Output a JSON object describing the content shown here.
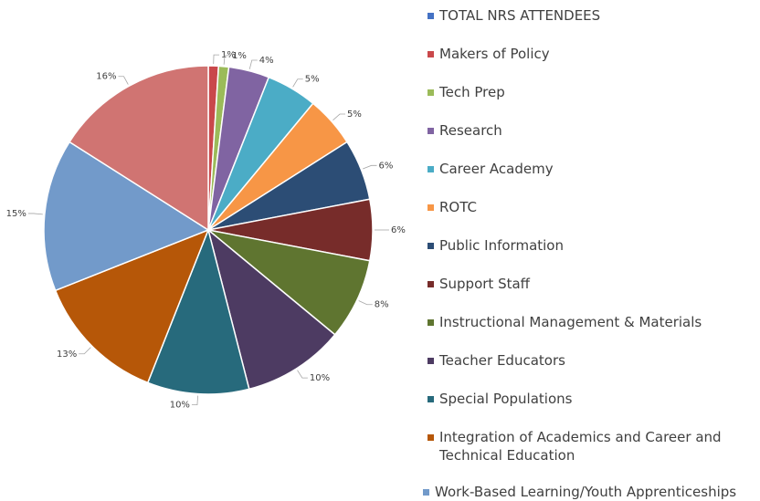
{
  "chart_data": {
    "type": "pie",
    "categories": [
      "TOTAL NRS ATTENDEES",
      "Makers of Policy",
      "Tech Prep",
      "Research",
      "Career Academy",
      "ROTC",
      "Public Information",
      "Support Staff",
      "Instructional Management & Materials",
      "Teacher Educators",
      "Special Populations",
      "Integration of Academics and Career and Technical Education",
      "Work-Based Learning/Youth Apprenticeships",
      null
    ],
    "values": [
      0,
      1,
      1,
      4,
      5,
      5,
      6,
      6,
      8,
      10,
      10,
      13,
      15,
      16
    ],
    "value_labels": [
      null,
      "1%",
      "1%",
      "4%",
      "5%",
      "5%",
      "6%",
      "6%",
      "8%",
      "10%",
      "10%",
      "13%",
      "15%",
      "16%"
    ],
    "colors": [
      "#4472c4",
      "#c9484b",
      "#9bbb59",
      "#8064a2",
      "#4bacc6",
      "#f79646",
      "#2c4d75",
      "#772c2a",
      "#5f7530",
      "#4d3b62",
      "#276a7c",
      "#b65708",
      "#729aca",
      "#d07472"
    ],
    "legend": "right"
  }
}
